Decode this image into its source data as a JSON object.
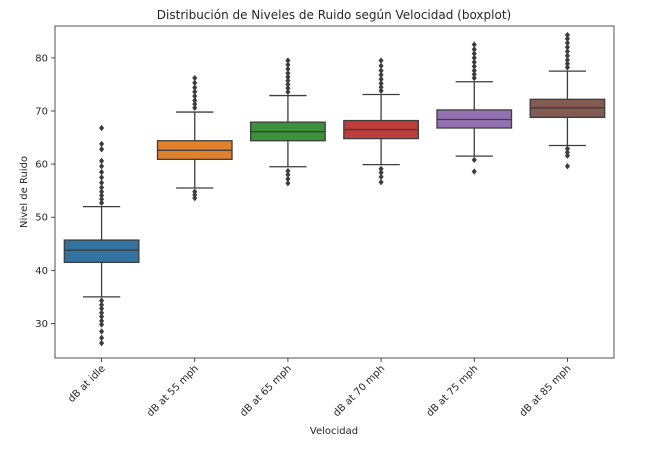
{
  "chart_data": {
    "type": "box",
    "title": "Distribución de Niveles de Ruido según Velocidad (boxplot)",
    "xlabel": "Velocidad",
    "ylabel": "Nivel de Ruido",
    "ylim": [
      23.5,
      86
    ],
    "yticks": [
      30,
      40,
      50,
      60,
      70,
      80
    ],
    "grid": false,
    "categories": [
      "dB at idle",
      "dB at 55 mph",
      "dB at 65 mph",
      "dB at 70 mph",
      "dB at 75 mph",
      "dB at 85 mph"
    ],
    "colors": [
      "#3274a1",
      "#e1812c",
      "#3a923a",
      "#c03d3e",
      "#9372b2",
      "#845b53"
    ],
    "boxes": [
      {
        "whisker_low": 35.0,
        "q1": 41.5,
        "median": 43.8,
        "q3": 45.7,
        "whisker_high": 52.0,
        "outliers": [
          34.3,
          33.5,
          32.8,
          32.0,
          31.3,
          30.5,
          29.8,
          28.5,
          27.3,
          26.3,
          52.7,
          53.4,
          54.1,
          54.8,
          55.6,
          56.5,
          57.5,
          58.5,
          59.6,
          60.6,
          62.8,
          63.8,
          66.8
        ]
      },
      {
        "whisker_low": 55.5,
        "q1": 60.9,
        "median": 62.6,
        "q3": 64.4,
        "whisker_high": 69.8,
        "outliers": [
          54.8,
          54.2,
          53.6,
          70.6,
          71.3,
          72.0,
          72.8,
          73.6,
          74.4,
          75.3,
          76.2
        ]
      },
      {
        "whisker_low": 59.5,
        "q1": 64.4,
        "median": 66.1,
        "q3": 67.9,
        "whisker_high": 72.9,
        "outliers": [
          58.7,
          58.0,
          57.2,
          56.4,
          73.6,
          74.3,
          75.0,
          75.7,
          76.4,
          77.1,
          77.9,
          78.7,
          79.5
        ]
      },
      {
        "whisker_low": 59.9,
        "q1": 64.8,
        "median": 66.5,
        "q3": 68.2,
        "whisker_high": 73.1,
        "outliers": [
          59.1,
          58.4,
          57.6,
          56.6,
          73.8,
          74.5,
          75.2,
          76.0,
          76.8,
          77.6,
          78.5,
          79.5
        ]
      },
      {
        "whisker_low": 61.5,
        "q1": 66.8,
        "median": 68.4,
        "q3": 70.2,
        "whisker_high": 75.5,
        "outliers": [
          60.8,
          58.6,
          76.2,
          76.9,
          77.6,
          78.4,
          79.2,
          80.0,
          80.8,
          81.6,
          82.5
        ]
      },
      {
        "whisker_low": 63.5,
        "q1": 68.8,
        "median": 70.6,
        "q3": 72.2,
        "whisker_high": 77.5,
        "outliers": [
          62.9,
          62.2,
          61.6,
          59.6,
          78.2,
          78.9,
          79.6,
          80.4,
          81.2,
          82.0,
          82.8,
          83.6,
          84.3
        ]
      }
    ]
  }
}
